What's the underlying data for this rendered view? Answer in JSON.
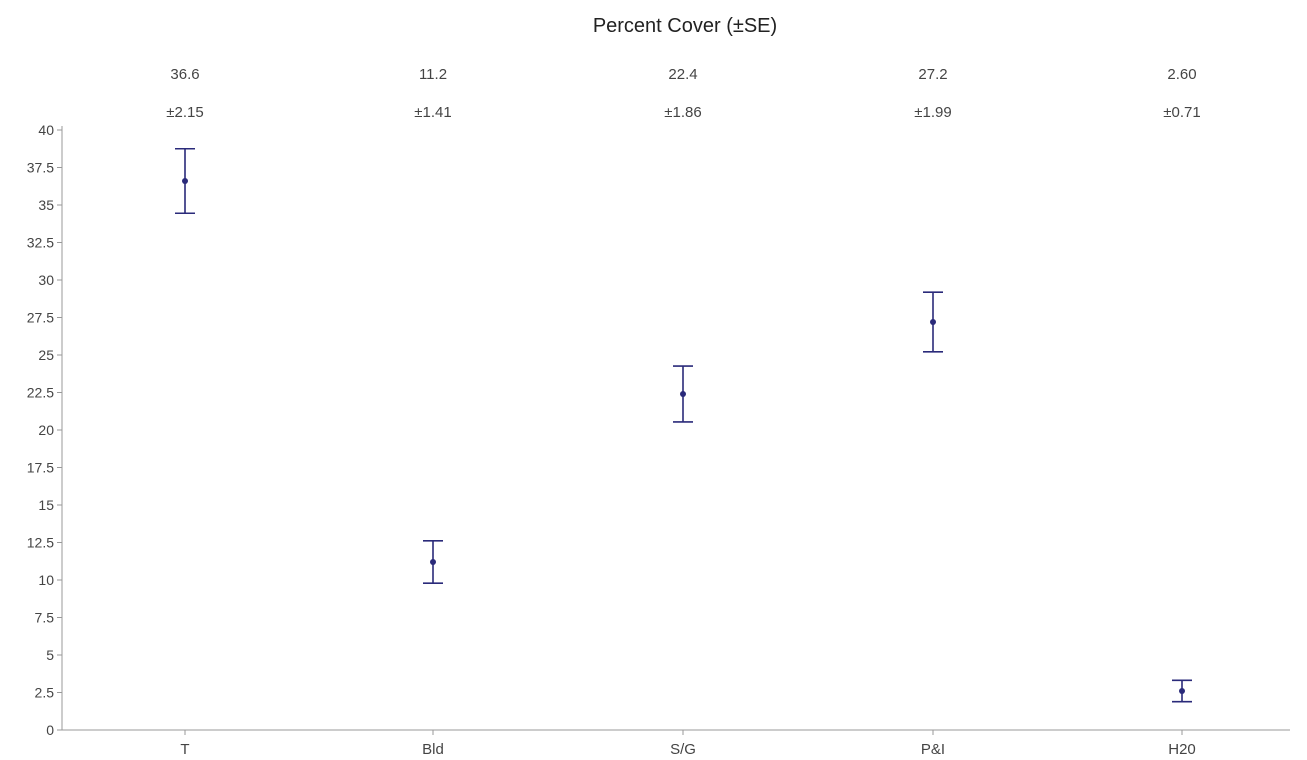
{
  "chart_data": {
    "type": "scatter",
    "title": "Percent Cover (±SE)",
    "xlabel": "",
    "ylabel": "",
    "categories": [
      "T",
      "Bld",
      "S/G",
      "P&I",
      "H20"
    ],
    "values": [
      36.6,
      11.2,
      22.4,
      27.2,
      2.6
    ],
    "errors": [
      2.15,
      1.41,
      1.86,
      1.99,
      0.71
    ],
    "value_labels": [
      "36.6",
      "11.2",
      "22.4",
      "27.2",
      "2.60"
    ],
    "error_labels": [
      "±2.15",
      "±1.41",
      "±1.86",
      "±1.99",
      "±0.71"
    ],
    "ylim": [
      0,
      40
    ],
    "yticks": [
      0,
      2.5,
      5,
      7.5,
      10,
      12.5,
      15,
      17.5,
      20,
      22.5,
      25,
      27.5,
      30,
      32.5,
      35,
      37.5,
      40
    ],
    "grid": false,
    "series_color": "#2a2a7a"
  }
}
